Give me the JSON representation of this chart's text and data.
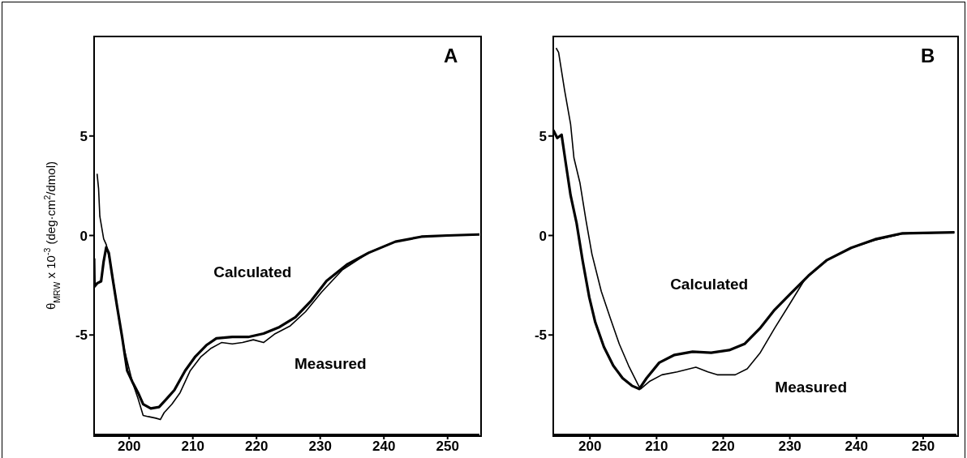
{
  "chart_data": [
    {
      "type": "line",
      "title": "A",
      "ylabel": "θ$_{MRW}$ x 10$^{-3}$ (deg·cm$^{2}$/dmol)",
      "xlim": [
        194.5,
        255
      ],
      "ylim": [
        -10,
        10
      ],
      "xticks": [
        200,
        210,
        220,
        230,
        240,
        250
      ],
      "yticks": [
        -5,
        0,
        5
      ],
      "marker": "none",
      "series": [
        {
          "name": "Calculated",
          "color": "#000000",
          "x": [
            194.5,
            194.56,
            195,
            195.6,
            196,
            196.4,
            196.8,
            197.4,
            198.1,
            198.9,
            199.7,
            200.5,
            201.4,
            202.2,
            203.4,
            204.7,
            205.9,
            207.1,
            208.8,
            210.4,
            212.1,
            213.7,
            216.2,
            218.7,
            221.1,
            223.6,
            226.1,
            228.6,
            231,
            234.3,
            237.6,
            241.8,
            245.9,
            250,
            255
          ],
          "values": [
            -1.15,
            -2.56,
            -2.4,
            -2.3,
            -1.3,
            -0.6,
            -0.87,
            -2.14,
            -3.55,
            -5.1,
            -6.8,
            -7.35,
            -7.9,
            -8.48,
            -8.69,
            -8.62,
            -8.2,
            -7.77,
            -6.79,
            -6.08,
            -5.52,
            -5.17,
            -5.1,
            -5.1,
            -4.93,
            -4.6,
            -4.11,
            -3.27,
            -2.28,
            -1.44,
            -0.87,
            -0.31,
            -0.06,
            0,
            0.05
          ]
        },
        {
          "name": "Measured",
          "color": "#000000",
          "x": [
            194.97,
            195.2,
            195.4,
            196,
            196.4,
            197,
            197.65,
            198.5,
            199.3,
            200.5,
            201.4,
            202.2,
            203,
            204.2,
            204.9,
            205.5,
            206.7,
            208,
            209.6,
            211.3,
            212.9,
            214.5,
            216.2,
            217.8,
            219.5,
            221.1,
            222.8,
            225.3,
            227.7,
            230.2,
            233.5,
            237.6,
            241.8,
            245.9,
            250,
            255
          ],
          "values": [
            3.1,
            2.37,
            0.96,
            -0.17,
            -0.45,
            -1.3,
            -2.56,
            -4.39,
            -5.8,
            -7.35,
            -8.2,
            -9.04,
            -9.1,
            -9.18,
            -9.25,
            -8.9,
            -8.48,
            -7.9,
            -6.79,
            -6.08,
            -5.66,
            -5.38,
            -5.45,
            -5.38,
            -5.24,
            -5.38,
            -4.96,
            -4.54,
            -3.83,
            -2.85,
            -1.72,
            -0.87,
            -0.31,
            -0.06,
            0,
            0.05
          ]
        }
      ]
    },
    {
      "type": "line",
      "title": "B",
      "xlim": [
        194.5,
        255
      ],
      "ylim": [
        -10,
        10
      ],
      "xticks": [
        200,
        210,
        220,
        230,
        240,
        250
      ],
      "yticks": [
        -5,
        0,
        5
      ],
      "marker": "none",
      "series": [
        {
          "name": "Calculated",
          "color": "#000000",
          "x": [
            194.5,
            195.1,
            195.75,
            196.4,
            197.1,
            198,
            198.9,
            199.9,
            200.8,
            202.1,
            203.5,
            204.9,
            206.3,
            207.4,
            208.5,
            210.4,
            212.7,
            215.4,
            218.2,
            220.9,
            223.2,
            225.5,
            227.7,
            230,
            232.8,
            235.5,
            239.2,
            242.8,
            246.9,
            254.7
          ],
          "values": [
            5.3,
            4.9,
            5.06,
            3.58,
            2.02,
            0.62,
            -1.25,
            -3.1,
            -4.36,
            -5.6,
            -6.54,
            -7.17,
            -7.55,
            -7.71,
            -7.17,
            -6.39,
            -6,
            -5.84,
            -5.89,
            -5.76,
            -5.45,
            -4.67,
            -3.74,
            -2.96,
            -2.02,
            -1.25,
            -0.62,
            -0.19,
            0.11,
            0.16
          ]
        },
        {
          "name": "Measured",
          "color": "#000000",
          "x": [
            194.93,
            195.3,
            196.2,
            197.1,
            197.6,
            198.5,
            199.4,
            200.3,
            201.7,
            203.1,
            204.4,
            205.8,
            207.2,
            207.6,
            209,
            210.8,
            213.1,
            215.9,
            217.7,
            219.1,
            221.8,
            223.6,
            225.5,
            227.7,
            230,
            232.3,
            235.5,
            239.2,
            242.8,
            246.9,
            254.7
          ],
          "values": [
            9.42,
            9.2,
            7.3,
            5.6,
            3.9,
            2.65,
            0.78,
            -0.93,
            -2.8,
            -4.2,
            -5.45,
            -6.54,
            -7.48,
            -7.71,
            -7.32,
            -7,
            -6.85,
            -6.62,
            -6.85,
            -7,
            -7,
            -6.7,
            -5.92,
            -4.67,
            -3.43,
            -2.18,
            -1.25,
            -0.62,
            -0.23,
            0.08,
            0.16
          ]
        }
      ]
    }
  ]
}
